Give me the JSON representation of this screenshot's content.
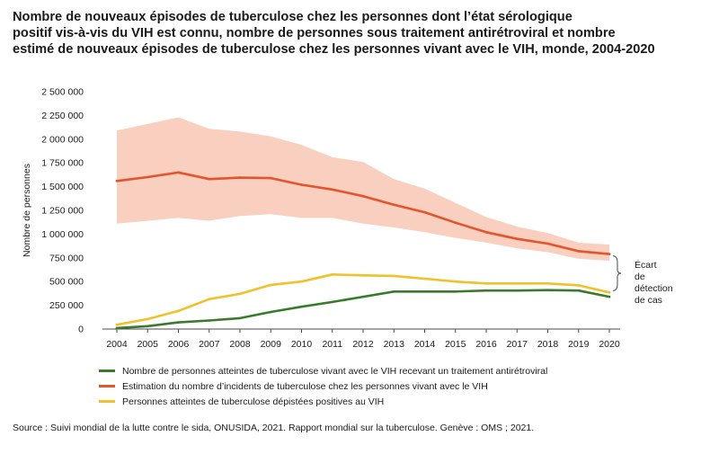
{
  "title_lines": [
    "Nombre de nouveaux épisodes de tuberculose chez les personnes dont l’état sérologique",
    "positif vis-à-vis du VIH est connu, nombre de personnes sous traitement antirétroviral et nombre",
    "estimé de nouveaux épisodes de tuberculose chez les personnes vivant avec le VIH, monde, 2004-2020"
  ],
  "source": "Source : Suivi mondial de la lutte contre le sida, ONUSIDA, 2021. Rapport mondial sur la tuberculose. Genève : OMS ; 2021.",
  "annotation_lines": [
    "Écart",
    "de",
    "détection",
    "de cas"
  ],
  "chart_data": {
    "type": "line",
    "ylabel": "Nombre de personnes",
    "ylim": [
      0,
      2500000
    ],
    "yticks": [
      0,
      250000,
      500000,
      750000,
      1000000,
      1250000,
      1500000,
      1750000,
      2000000,
      2250000,
      2500000
    ],
    "ytick_labels": [
      "0",
      "250 000",
      "500 000",
      "750 000",
      "1 000 000",
      "1 250 000",
      "1 500 000",
      "1 750 000",
      "2 000 000",
      "2 250 000",
      "2 500 000"
    ],
    "x": [
      "2004",
      "2005",
      "2006",
      "2007",
      "2008",
      "2009",
      "2010",
      "2011",
      "2012",
      "2013",
      "2014",
      "2015",
      "2016",
      "2017",
      "2018",
      "2019",
      "2020"
    ],
    "grid": false,
    "legend_position": "bottom",
    "series": [
      {
        "name": "Nombre de personnes atteintes de tuberculose vivant avec le VIH recevant un traitement antirétroviral",
        "color": "#3a7a2c",
        "values": [
          10000,
          30000,
          70000,
          90000,
          115000,
          180000,
          235000,
          285000,
          340000,
          395000,
          395000,
          395000,
          405000,
          405000,
          410000,
          405000,
          340000
        ]
      },
      {
        "name": "Estimation du nombre d’incidents de tuberculose chez les personnes vivant avec le VIH",
        "color": "#e5542a",
        "values": [
          1560000,
          1600000,
          1650000,
          1580000,
          1595000,
          1590000,
          1520000,
          1470000,
          1400000,
          1310000,
          1230000,
          1120000,
          1020000,
          950000,
          900000,
          820000,
          790000
        ],
        "band_upper": [
          2090000,
          2160000,
          2230000,
          2110000,
          2080000,
          2030000,
          1940000,
          1810000,
          1760000,
          1580000,
          1480000,
          1330000,
          1180000,
          1080000,
          1010000,
          910000,
          890000
        ],
        "band_lower": [
          1110000,
          1140000,
          1170000,
          1140000,
          1190000,
          1210000,
          1170000,
          1170000,
          1110000,
          1070000,
          1020000,
          960000,
          910000,
          850000,
          810000,
          740000,
          720000
        ],
        "band_color": "#f9cfc0"
      },
      {
        "name": "Personnes atteintes de tuberculose dépistées positives au VIH",
        "color": "#f0c12c",
        "values": [
          45000,
          105000,
          190000,
          315000,
          370000,
          465000,
          500000,
          575000,
          565000,
          560000,
          530000,
          500000,
          480000,
          480000,
          480000,
          460000,
          385000
        ]
      }
    ]
  }
}
